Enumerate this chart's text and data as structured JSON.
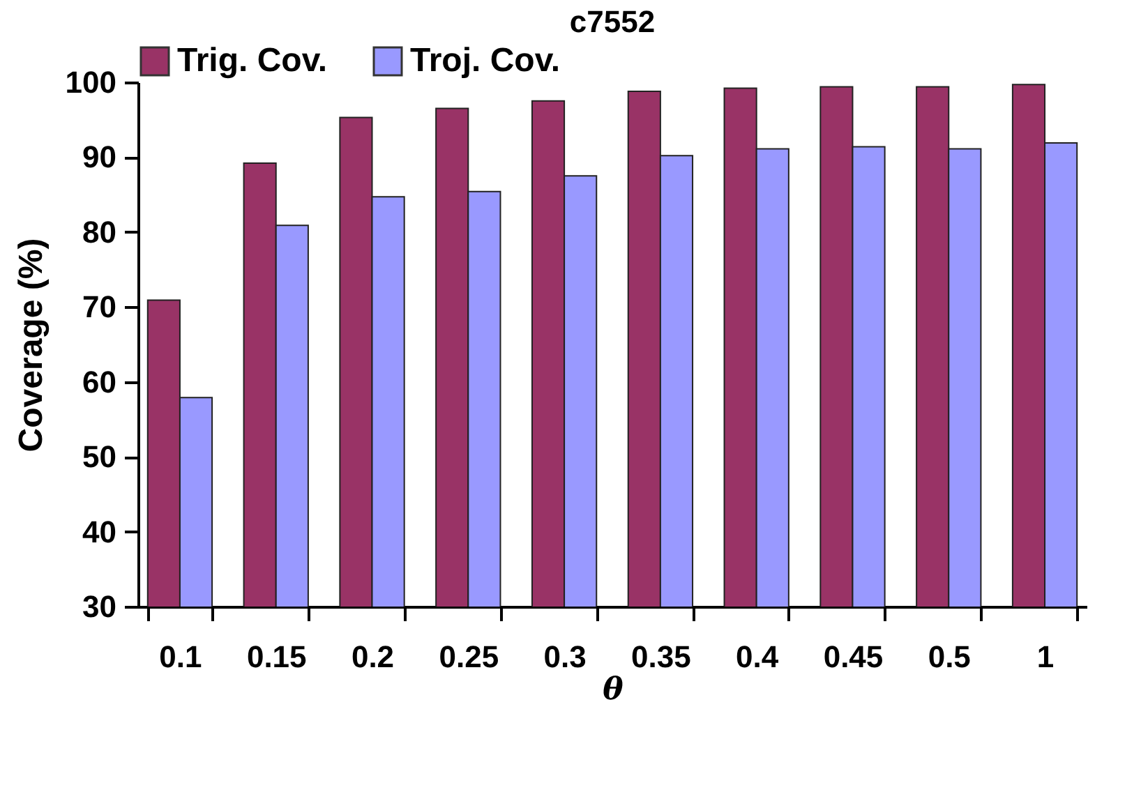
{
  "chart_data": {
    "type": "bar",
    "title": "c7552",
    "xlabel": "θ",
    "ylabel": "Coverage (%)",
    "categories": [
      "0.1",
      "0.15",
      "0.2",
      "0.25",
      "0.3",
      "0.35",
      "0.4",
      "0.45",
      "0.5",
      "1"
    ],
    "series": [
      {
        "name": "Trig. Cov.",
        "color": "#993366",
        "values": [
          70.9,
          89.2,
          95.3,
          96.5,
          97.5,
          98.8,
          99.2,
          99.4,
          99.4,
          99.7
        ]
      },
      {
        "name": "Troj. Cov.",
        "color": "#9999ff",
        "values": [
          57.9,
          80.9,
          84.7,
          85.4,
          87.5,
          90.2,
          91.1,
          91.4,
          91.1,
          91.9
        ]
      }
    ],
    "ylim": [
      30,
      100
    ],
    "yticks": [
      30,
      40,
      50,
      60,
      70,
      80,
      90,
      100
    ],
    "grid": false,
    "legend": "top"
  }
}
